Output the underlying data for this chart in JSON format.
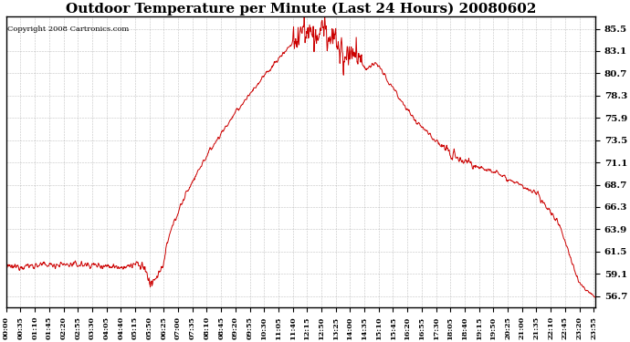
{
  "title": "Outdoor Temperature per Minute (Last 24 Hours) 20080602",
  "copyright_text": "Copyright 2008 Cartronics.com",
  "line_color": "#cc0000",
  "bg_color": "#ffffff",
  "plot_bg_color": "#ffffff",
  "grid_color": "#999999",
  "title_fontsize": 11,
  "yticks": [
    56.7,
    59.1,
    61.5,
    63.9,
    66.3,
    68.7,
    71.1,
    73.5,
    75.9,
    78.3,
    80.7,
    83.1,
    85.5
  ],
  "ylim": [
    55.5,
    86.8
  ],
  "x_tick_interval": 35,
  "num_points": 1440
}
